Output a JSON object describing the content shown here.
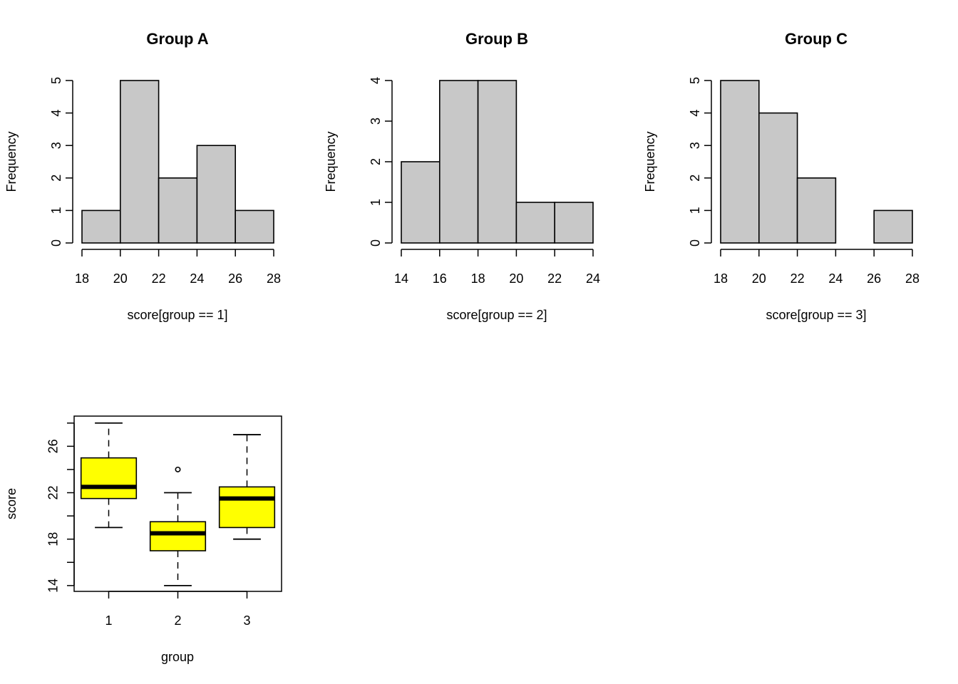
{
  "chart_data": [
    {
      "type": "bar",
      "subtype": "histogram",
      "title": "Group A",
      "xlabel": "score[group == 1]",
      "ylabel": "Frequency",
      "bin_edges": [
        18,
        20,
        22,
        24,
        26,
        28
      ],
      "values": [
        1,
        5,
        2,
        3,
        1
      ],
      "x_ticks": [
        18,
        20,
        22,
        24,
        26,
        28
      ],
      "y_ticks": [
        0,
        1,
        2,
        3,
        4,
        5
      ],
      "xlim": [
        18,
        28
      ],
      "ylim": [
        0,
        5
      ],
      "bar_color": "#c8c8c8",
      "grid": false
    },
    {
      "type": "bar",
      "subtype": "histogram",
      "title": "Group B",
      "xlabel": "score[group == 2]",
      "ylabel": "Frequency",
      "bin_edges": [
        14,
        16,
        18,
        20,
        22,
        24
      ],
      "values": [
        2,
        4,
        4,
        1,
        1
      ],
      "x_ticks": [
        14,
        16,
        18,
        20,
        22,
        24
      ],
      "y_ticks": [
        0,
        1,
        2,
        3,
        4
      ],
      "xlim": [
        14,
        24
      ],
      "ylim": [
        0,
        4
      ],
      "bar_color": "#c8c8c8",
      "grid": false
    },
    {
      "type": "bar",
      "subtype": "histogram",
      "title": "Group C",
      "xlabel": "score[group == 3]",
      "ylabel": "Frequency",
      "bin_edges": [
        18,
        20,
        22,
        24,
        26,
        28
      ],
      "values": [
        5,
        4,
        2,
        0,
        1
      ],
      "x_ticks": [
        18,
        20,
        22,
        24,
        26,
        28
      ],
      "y_ticks": [
        0,
        1,
        2,
        3,
        4,
        5
      ],
      "xlim": [
        18,
        28
      ],
      "ylim": [
        0,
        5
      ],
      "bar_color": "#c8c8c8",
      "grid": false
    },
    {
      "type": "boxplot",
      "title": "",
      "xlabel": "group",
      "ylabel": "score",
      "categories": [
        "1",
        "2",
        "3"
      ],
      "boxes": [
        {
          "category": "1",
          "whisker_low": 19,
          "q1": 21.5,
          "median": 22.5,
          "q3": 25,
          "whisker_high": 28,
          "outliers": []
        },
        {
          "category": "2",
          "whisker_low": 14,
          "q1": 17,
          "median": 18.5,
          "q3": 19.5,
          "whisker_high": 22,
          "outliers": [
            24
          ]
        },
        {
          "category": "3",
          "whisker_low": 18,
          "q1": 19,
          "median": 21.5,
          "q3": 22.5,
          "whisker_high": 27,
          "outliers": []
        }
      ],
      "y_ticks": [
        14,
        16,
        18,
        20,
        22,
        24,
        26,
        28
      ],
      "y_tick_labels": [
        "14",
        "",
        "18",
        "",
        "22",
        "",
        "26",
        ""
      ],
      "ylim": [
        13.5,
        28.6
      ],
      "box_color": "#ffff00",
      "grid": false
    }
  ]
}
